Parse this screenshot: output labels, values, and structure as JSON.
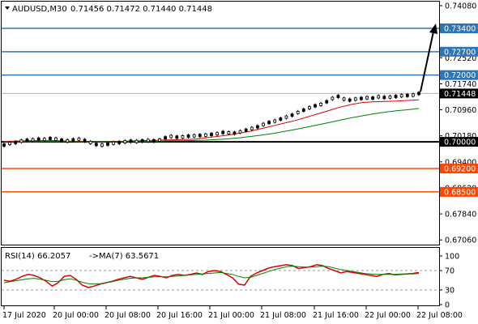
{
  "header": {
    "symbol": "AUDUSD,M30",
    "ohlc": "0.71456 0.71472 0.71440 0.71448"
  },
  "rsi_header": {
    "label": "RSI(14) 66.2057",
    "ma_label": "->MA(7) 63.5671"
  },
  "colors": {
    "level_blue": "#2e75b6",
    "level_orange": "#ff4500",
    "level_black": "#000000",
    "ma_fast": "#e00000",
    "ma_slow": "#008000",
    "rsi_line": "#e00000",
    "rsi_ma": "#008000",
    "price_tag_bg": "#2e75b6",
    "current_tag_bg": "#000000"
  },
  "chart_data": [
    {
      "type": "line",
      "panel": "price",
      "ylim": [
        0.6685,
        0.7425
      ],
      "y_ticks": [
        "0.74080",
        "0.73400",
        "0.72520",
        "0.72000",
        "0.71740",
        "0.70960",
        "0.70180",
        "0.69400",
        "0.68620",
        "0.67840",
        "0.67060"
      ],
      "x_ticks": [
        "17 Jul 2020",
        "20 Jul 00:00",
        "20 Jul 08:00",
        "20 Jul 16:00",
        "21 Jul 00:00",
        "21 Jul 08:00",
        "21 Jul 16:00",
        "22 Jul 00:00",
        "22 Jul 08:00"
      ],
      "levels": [
        {
          "value": 0.734,
          "label": "0.73400",
          "color": "blue"
        },
        {
          "value": 0.727,
          "label": "0.72700",
          "color": "blue"
        },
        {
          "value": 0.72,
          "label": "0.72000",
          "color": "blue"
        },
        {
          "value": 0.7,
          "label": "0.70000",
          "color": "black"
        },
        {
          "value": 0.692,
          "label": "0.69200",
          "color": "orange"
        },
        {
          "value": 0.685,
          "label": "0.68500",
          "color": "orange"
        }
      ],
      "current_price": {
        "value": 0.71448,
        "label": "0.71448"
      },
      "candles": [
        0.699,
        0.6995,
        0.6998,
        0.7002,
        0.7005,
        0.7006,
        0.7008,
        0.7007,
        0.701,
        0.7008,
        0.7005,
        0.7003,
        0.7006,
        0.7008,
        0.7004,
        0.6998,
        0.6992,
        0.699,
        0.6993,
        0.6996,
        0.6998,
        0.7,
        0.7002,
        0.7001,
        0.7003,
        0.7004,
        0.7003,
        0.7005,
        0.7012,
        0.7016,
        0.7014,
        0.7015,
        0.7017,
        0.7018,
        0.7019,
        0.702,
        0.7022,
        0.7024,
        0.7028,
        0.7027,
        0.7026,
        0.703,
        0.7035,
        0.704,
        0.7045,
        0.7052,
        0.7058,
        0.7062,
        0.7068,
        0.7074,
        0.708,
        0.7088,
        0.7095,
        0.7102,
        0.7108,
        0.7112,
        0.712,
        0.713,
        0.7136,
        0.7128,
        0.7125,
        0.7128,
        0.713,
        0.7132,
        0.7131,
        0.7135,
        0.7133,
        0.7134,
        0.7136,
        0.7138,
        0.7139,
        0.714,
        0.71448
      ],
      "series": [
        {
          "key": "ma_fast",
          "values": [
            0.7,
            0.7002,
            0.7003,
            0.7004,
            0.7004,
            0.7003,
            0.7002,
            0.7001,
            0.7,
            0.7,
            0.7001,
            0.7002,
            0.7003,
            0.7004,
            0.7005,
            0.7006,
            0.7007,
            0.7008,
            0.7012,
            0.7016,
            0.702,
            0.7026,
            0.7032,
            0.704,
            0.7048,
            0.7056,
            0.7064,
            0.7074,
            0.7084,
            0.7094,
            0.7104,
            0.7112,
            0.7118,
            0.712,
            0.7121,
            0.7122,
            0.7124,
            0.7126
          ]
        },
        {
          "key": "ma_slow",
          "values": [
            0.6998,
            0.6999,
            0.7,
            0.7,
            0.7001,
            0.7001,
            0.7001,
            0.7,
            0.7,
            0.7,
            0.7,
            0.7001,
            0.7001,
            0.7002,
            0.7002,
            0.7003,
            0.7003,
            0.7004,
            0.7005,
            0.7007,
            0.7009,
            0.7012,
            0.7016,
            0.702,
            0.7025,
            0.7031,
            0.7037,
            0.7044,
            0.7051,
            0.7058,
            0.7065,
            0.7072,
            0.7078,
            0.7084,
            0.7089,
            0.7093,
            0.7096,
            0.71
          ]
        }
      ],
      "projection": {
        "from": 0.715,
        "to": 0.734
      }
    },
    {
      "type": "line",
      "panel": "rsi",
      "ylim": [
        0,
        100
      ],
      "y_ticks": [
        {
          "value": 100,
          "label": "100"
        },
        {
          "value": 70,
          "label": "70"
        },
        {
          "value": 30,
          "label": "30"
        },
        {
          "value": 0,
          "label": "0"
        }
      ],
      "series": [
        {
          "key": "rsi_line",
          "values": [
            50,
            48,
            52,
            58,
            62,
            60,
            55,
            48,
            38,
            45,
            58,
            60,
            52,
            40,
            35,
            38,
            42,
            45,
            48,
            52,
            55,
            58,
            55,
            52,
            56,
            60,
            58,
            55,
            60,
            62,
            60,
            62,
            65,
            62,
            68,
            70,
            68,
            62,
            55,
            42,
            40,
            58,
            65,
            70,
            75,
            78,
            80,
            82,
            80,
            74,
            76,
            78,
            82,
            80,
            74,
            70,
            65,
            68,
            66,
            64,
            62,
            60,
            58,
            62,
            64,
            61,
            62,
            63,
            64,
            66
          ]
        },
        {
          "key": "rsi_ma",
          "values": [
            45,
            47,
            49,
            51,
            53,
            54,
            52,
            50,
            47,
            48,
            51,
            53,
            50,
            46,
            43,
            42,
            43,
            45,
            47,
            50,
            52,
            54,
            55,
            55,
            56,
            57,
            57,
            57,
            58,
            59,
            60,
            61,
            62,
            63,
            64,
            65,
            66,
            64,
            62,
            58,
            55,
            56,
            60,
            64,
            68,
            72,
            75,
            78,
            79,
            78,
            77,
            77,
            78,
            79,
            78,
            75,
            72,
            70,
            68,
            66,
            64,
            63,
            62,
            62,
            62,
            62,
            63,
            63,
            63,
            64
          ]
        }
      ]
    }
  ]
}
